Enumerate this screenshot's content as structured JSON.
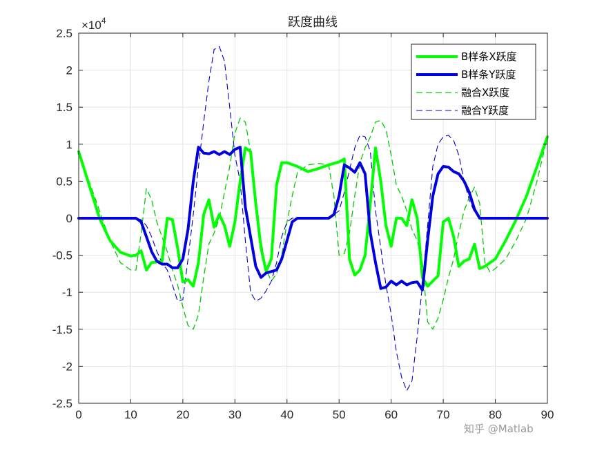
{
  "chart_data": {
    "type": "line",
    "title": "跃度曲线",
    "xlabel": "",
    "ylabel": "",
    "xlim": [
      0,
      90
    ],
    "ylim": [
      -2.5,
      2.5
    ],
    "y_exponent_label": "×10",
    "y_exponent_power": "4",
    "xticks": [
      "0",
      "10",
      "20",
      "30",
      "40",
      "50",
      "60",
      "70",
      "80",
      "90"
    ],
    "yticks": [
      "-2.5",
      "-2",
      "-1.5",
      "-1",
      "-0.5",
      "0",
      "0.5",
      "1",
      "1.5",
      "2",
      "2.5"
    ],
    "grid": true,
    "legend_position": "top-right",
    "series": [
      {
        "name": "B样条X跃度",
        "color": "#00ff00",
        "style": "solid",
        "width": 4,
        "points": [
          [
            0,
            0.9
          ],
          [
            2,
            0.45
          ],
          [
            4,
            0.0
          ],
          [
            6,
            -0.3
          ],
          [
            8,
            -0.46
          ],
          [
            10,
            -0.51
          ],
          [
            11,
            -0.5
          ],
          [
            12,
            -0.44
          ],
          [
            13,
            -0.7
          ],
          [
            14,
            -0.6
          ],
          [
            16,
            -0.58
          ],
          [
            17,
            0.0
          ],
          [
            18,
            -0.02
          ],
          [
            19,
            -0.4
          ],
          [
            20,
            -0.86
          ],
          [
            21,
            -0.83
          ],
          [
            22,
            -0.92
          ],
          [
            23,
            -0.6
          ],
          [
            24,
            0.05
          ],
          [
            25,
            0.25
          ],
          [
            26,
            -0.12
          ],
          [
            27,
            0.05
          ],
          [
            28,
            -0.1
          ],
          [
            29,
            -0.38
          ],
          [
            30,
            -0.05
          ],
          [
            31,
            0.5
          ],
          [
            32,
            0.95
          ],
          [
            33,
            0.9
          ],
          [
            34,
            0.2
          ],
          [
            35,
            -0.4
          ],
          [
            36,
            -0.72
          ],
          [
            37,
            -0.55
          ],
          [
            38,
            0.45
          ],
          [
            39,
            0.75
          ],
          [
            40,
            0.75
          ],
          [
            42,
            0.7
          ],
          [
            44,
            0.63
          ],
          [
            46,
            0.67
          ],
          [
            48,
            0.72
          ],
          [
            50,
            0.76
          ],
          [
            51,
            0.8
          ],
          [
            52,
            -0.55
          ],
          [
            53,
            -0.77
          ],
          [
            54,
            -0.7
          ],
          [
            55,
            -0.5
          ],
          [
            56,
            0.2
          ],
          [
            57,
            0.95
          ],
          [
            58,
            0.5
          ],
          [
            59,
            -0.1
          ],
          [
            60,
            -0.38
          ],
          [
            61,
            0.0
          ],
          [
            62,
            0.0
          ],
          [
            63,
            -0.1
          ],
          [
            64,
            0.25
          ],
          [
            65,
            0.0
          ],
          [
            66,
            -0.8
          ],
          [
            67,
            -0.92
          ],
          [
            68,
            -0.85
          ],
          [
            69,
            -0.78
          ],
          [
            70,
            -0.05
          ],
          [
            71,
            0.0
          ],
          [
            72,
            -0.25
          ],
          [
            73,
            -0.65
          ],
          [
            74,
            -0.58
          ],
          [
            75,
            -0.55
          ],
          [
            76,
            -0.35
          ],
          [
            77,
            -0.68
          ],
          [
            78,
            -0.65
          ],
          [
            80,
            -0.55
          ],
          [
            82,
            -0.3
          ],
          [
            84,
            -0.02
          ],
          [
            86,
            0.3
          ],
          [
            88,
            0.7
          ],
          [
            90,
            1.1
          ]
        ]
      },
      {
        "name": "B样条Y跃度",
        "color": "#0000e0",
        "style": "solid",
        "width": 4,
        "points": [
          [
            0,
            0.0
          ],
          [
            10,
            0.0
          ],
          [
            11,
            0.0
          ],
          [
            12,
            -0.05
          ],
          [
            13,
            -0.25
          ],
          [
            14,
            -0.45
          ],
          [
            15,
            -0.58
          ],
          [
            16,
            -0.62
          ],
          [
            17,
            -0.62
          ],
          [
            18,
            -0.67
          ],
          [
            19,
            -0.67
          ],
          [
            20,
            -0.55
          ],
          [
            21,
            -0.15
          ],
          [
            22,
            0.5
          ],
          [
            23,
            0.96
          ],
          [
            24,
            0.88
          ],
          [
            25,
            0.87
          ],
          [
            26,
            0.9
          ],
          [
            27,
            0.86
          ],
          [
            28,
            0.9
          ],
          [
            29,
            0.86
          ],
          [
            30,
            0.93
          ],
          [
            31,
            0.96
          ],
          [
            32,
            0.15
          ],
          [
            33,
            -0.25
          ],
          [
            34,
            -0.65
          ],
          [
            35,
            -0.8
          ],
          [
            36,
            -0.74
          ],
          [
            37,
            -0.72
          ],
          [
            38,
            -0.7
          ],
          [
            39,
            -0.55
          ],
          [
            40,
            -0.3
          ],
          [
            41,
            -0.05
          ],
          [
            42,
            0.0
          ],
          [
            44,
            0.0
          ],
          [
            48,
            0.0
          ],
          [
            49,
            0.05
          ],
          [
            50,
            0.3
          ],
          [
            51,
            0.72
          ],
          [
            52,
            0.68
          ],
          [
            53,
            0.62
          ],
          [
            54,
            0.75
          ],
          [
            55,
            0.6
          ],
          [
            56,
            -0.2
          ],
          [
            57,
            -0.6
          ],
          [
            58,
            -0.95
          ],
          [
            59,
            -0.93
          ],
          [
            60,
            -0.85
          ],
          [
            61,
            -0.9
          ],
          [
            62,
            -0.85
          ],
          [
            63,
            -0.9
          ],
          [
            64,
            -0.87
          ],
          [
            65,
            -0.86
          ],
          [
            66,
            -0.97
          ],
          [
            67,
            -0.3
          ],
          [
            68,
            0.3
          ],
          [
            69,
            0.6
          ],
          [
            70,
            0.7
          ],
          [
            71,
            0.69
          ],
          [
            72,
            0.63
          ],
          [
            73,
            0.6
          ],
          [
            74,
            0.5
          ],
          [
            75,
            0.35
          ],
          [
            76,
            0.12
          ],
          [
            77,
            0.0
          ],
          [
            78,
            0.0
          ],
          [
            80,
            0.0
          ],
          [
            90,
            0.0
          ]
        ]
      },
      {
        "name": "融合X跃度",
        "color": "#00cc00",
        "style": "dashed",
        "width": 1.3,
        "points": [
          [
            0,
            0.9
          ],
          [
            3,
            0.3
          ],
          [
            6,
            -0.3
          ],
          [
            8,
            -0.6
          ],
          [
            10,
            -0.7
          ],
          [
            11,
            -0.7
          ],
          [
            12,
            -0.2
          ],
          [
            13,
            0.4
          ],
          [
            14,
            0.25
          ],
          [
            15,
            -0.05
          ],
          [
            16,
            -0.25
          ],
          [
            17,
            -0.45
          ],
          [
            18,
            -0.7
          ],
          [
            19,
            -0.9
          ],
          [
            20,
            -1.2
          ],
          [
            21,
            -1.45
          ],
          [
            22,
            -1.5
          ],
          [
            23,
            -1.3
          ],
          [
            24,
            -0.8
          ],
          [
            25,
            -0.35
          ],
          [
            26,
            -0.2
          ],
          [
            27,
            0.0
          ],
          [
            28,
            0.35
          ],
          [
            29,
            0.7
          ],
          [
            30,
            1.15
          ],
          [
            31,
            1.35
          ],
          [
            32,
            1.3
          ],
          [
            33,
            0.9
          ],
          [
            34,
            0.3
          ],
          [
            35,
            -0.3
          ],
          [
            36,
            -0.7
          ],
          [
            37,
            -0.85
          ],
          [
            38,
            -0.75
          ],
          [
            39,
            -0.5
          ],
          [
            40,
            -0.05
          ],
          [
            41,
            0.3
          ],
          [
            42,
            0.62
          ],
          [
            44,
            0.72
          ],
          [
            46,
            0.74
          ],
          [
            48,
            0.72
          ],
          [
            49,
            0.3
          ],
          [
            50,
            -0.5
          ],
          [
            51,
            -0.48
          ],
          [
            52,
            -0.2
          ],
          [
            53,
            0.3
          ],
          [
            54,
            0.75
          ],
          [
            55,
            0.95
          ],
          [
            56,
            1.1
          ],
          [
            57,
            1.3
          ],
          [
            58,
            1.32
          ],
          [
            59,
            1.2
          ],
          [
            60,
            0.85
          ],
          [
            61,
            0.45
          ],
          [
            62,
            0.3
          ],
          [
            63,
            0.1
          ],
          [
            64,
            -0.15
          ],
          [
            65,
            -0.3
          ],
          [
            66,
            -0.6
          ],
          [
            67,
            -1.4
          ],
          [
            68,
            -1.5
          ],
          [
            69,
            -1.35
          ],
          [
            70,
            -1.1
          ],
          [
            71,
            -0.8
          ],
          [
            72,
            -0.55
          ],
          [
            73,
            -0.2
          ],
          [
            74,
            0.1
          ],
          [
            75,
            0.28
          ],
          [
            76,
            0.42
          ],
          [
            77,
            0.2
          ],
          [
            78,
            -0.6
          ],
          [
            79,
            -0.73
          ],
          [
            80,
            -0.68
          ],
          [
            82,
            -0.55
          ],
          [
            84,
            -0.3
          ],
          [
            86,
            0.0
          ],
          [
            88,
            0.5
          ],
          [
            90,
            1.1
          ]
        ]
      },
      {
        "name": "融合Y跃度",
        "color": "#0000c8",
        "style": "dashed",
        "width": 1.1,
        "points": [
          [
            0,
            0.0
          ],
          [
            11,
            0.0
          ],
          [
            12,
            -0.02
          ],
          [
            13,
            -0.1
          ],
          [
            14,
            -0.25
          ],
          [
            15,
            -0.45
          ],
          [
            16,
            -0.6
          ],
          [
            17,
            -0.7
          ],
          [
            18,
            -0.9
          ],
          [
            19,
            -1.12
          ],
          [
            20,
            -1.1
          ],
          [
            21,
            -0.55
          ],
          [
            22,
            0.05
          ],
          [
            23,
            0.7
          ],
          [
            24,
            1.3
          ],
          [
            25,
            1.85
          ],
          [
            26,
            2.28
          ],
          [
            27,
            2.32
          ],
          [
            28,
            2.12
          ],
          [
            29,
            1.5
          ],
          [
            30,
            0.85
          ],
          [
            31,
            0.5
          ],
          [
            32,
            -0.3
          ],
          [
            33,
            -1.0
          ],
          [
            34,
            -1.12
          ],
          [
            35,
            -1.08
          ],
          [
            36,
            -0.98
          ],
          [
            37,
            -0.85
          ],
          [
            38,
            -0.6
          ],
          [
            39,
            -0.25
          ],
          [
            40,
            -0.05
          ],
          [
            41,
            0.0
          ],
          [
            45,
            0.0
          ],
          [
            48,
            0.0
          ],
          [
            50,
            0.1
          ],
          [
            51,
            0.35
          ],
          [
            52,
            0.65
          ],
          [
            53,
            0.95
          ],
          [
            54,
            1.12
          ],
          [
            55,
            1.1
          ],
          [
            56,
            0.9
          ],
          [
            57,
            0.1
          ],
          [
            58,
            -0.4
          ],
          [
            59,
            -0.9
          ],
          [
            60,
            -1.3
          ],
          [
            61,
            -1.8
          ],
          [
            62,
            -2.15
          ],
          [
            63,
            -2.33
          ],
          [
            64,
            -2.2
          ],
          [
            65,
            -1.6
          ],
          [
            66,
            -0.9
          ],
          [
            67,
            -0.1
          ],
          [
            68,
            0.7
          ],
          [
            69,
            1.0
          ],
          [
            70,
            1.1
          ],
          [
            71,
            1.12
          ],
          [
            72,
            1.05
          ],
          [
            73,
            0.85
          ],
          [
            74,
            0.5
          ],
          [
            75,
            0.25
          ],
          [
            76,
            0.08
          ],
          [
            77,
            0.0
          ],
          [
            80,
            0.0
          ],
          [
            90,
            0.0
          ]
        ]
      }
    ]
  },
  "watermark": {
    "text": "知乎 @Matlab"
  }
}
